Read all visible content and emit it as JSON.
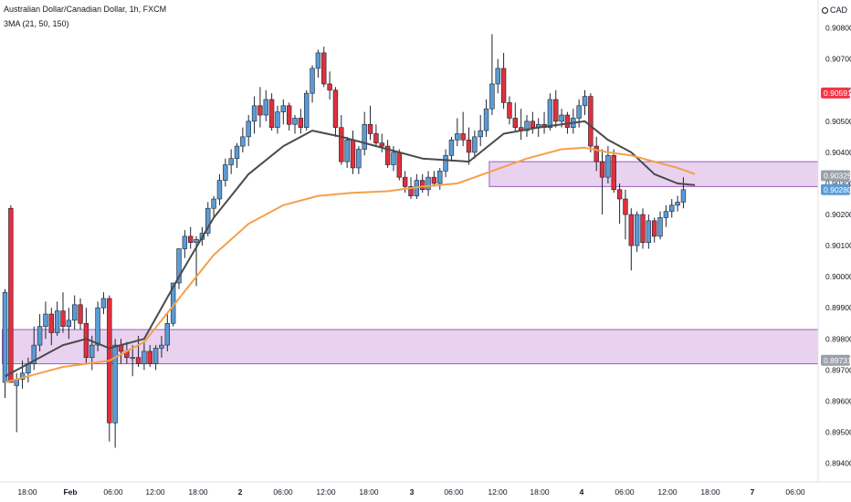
{
  "header": {
    "title": "Australian Dollar/Canadian Dollar, 1h, FXCM",
    "indicator": "3MA (21, 50, 150)",
    "currency": "CAD"
  },
  "colors": {
    "up": "#5b9bd5",
    "down": "#e0303e",
    "wick": "#1f2430",
    "ma_fast": "#4a4a4a",
    "ma_slow": "#f5a04a",
    "zone_fill": "rgba(209,165,226,0.50)",
    "zone_border": "#9b5fb5",
    "stop_fill": "rgba(255,205,210,0.80)",
    "target_fill": "rgba(200,236,225,0.85)",
    "price_red": "#f23645",
    "price_gray": "#9aa0ab",
    "price_blue": "#5b9bd5"
  },
  "chart_data": {
    "type": "candlestick",
    "symbol": "AUDCAD",
    "timeframe": "1h",
    "ylim": [
      0.8934,
      0.9089
    ],
    "y_ticks": [
      "0.90800",
      "0.90700",
      "0.90600",
      "0.90500",
      "0.90400",
      "0.90300",
      "0.90200",
      "0.90100",
      "0.90000",
      "0.89900",
      "0.89800",
      "0.89700",
      "0.89600",
      "0.89500",
      "0.89400"
    ],
    "x_ticks": [
      "18:00",
      "Feb",
      "06:00",
      "12:00",
      "18:00",
      "2",
      "06:00",
      "12:00",
      "18:00",
      "3",
      "06:00",
      "12:00",
      "18:00",
      "4",
      "06:00",
      "12:00",
      "18:00",
      "7",
      "06:00"
    ],
    "candles": [
      [
        0.8966,
        0.8996,
        0.8961,
        0.8995
      ],
      [
        0.9022,
        0.9023,
        0.8966,
        0.8966
      ],
      [
        0.8965,
        0.8969,
        0.895,
        0.8967
      ],
      [
        0.8967,
        0.8973,
        0.8964,
        0.8969
      ],
      [
        0.8969,
        0.8974,
        0.8966,
        0.8972
      ],
      [
        0.8972,
        0.8984,
        0.897,
        0.8978
      ],
      [
        0.8978,
        0.8988,
        0.8976,
        0.8984
      ],
      [
        0.8984,
        0.8992,
        0.898,
        0.8988
      ],
      [
        0.8988,
        0.899,
        0.8978,
        0.8982
      ],
      [
        0.8982,
        0.8992,
        0.8981,
        0.8989
      ],
      [
        0.8989,
        0.8995,
        0.8982,
        0.8984
      ],
      [
        0.8984,
        0.899,
        0.898,
        0.8986
      ],
      [
        0.8986,
        0.8994,
        0.8983,
        0.8991
      ],
      [
        0.8991,
        0.8993,
        0.8983,
        0.8985
      ],
      [
        0.8985,
        0.899,
        0.8972,
        0.8974
      ],
      [
        0.8974,
        0.8981,
        0.897,
        0.8978
      ],
      [
        0.8978,
        0.8992,
        0.8976,
        0.899
      ],
      [
        0.899,
        0.8995,
        0.8988,
        0.8993
      ],
      [
        0.8993,
        0.8994,
        0.8947,
        0.8953
      ],
      [
        0.8953,
        0.898,
        0.8945,
        0.8978
      ],
      [
        0.8978,
        0.898,
        0.8972,
        0.8976
      ],
      [
        0.8976,
        0.8979,
        0.8972,
        0.8974
      ],
      [
        0.8974,
        0.8978,
        0.8968,
        0.8974
      ],
      [
        0.8974,
        0.8981,
        0.8971,
        0.8972
      ],
      [
        0.8972,
        0.8979,
        0.897,
        0.8976
      ],
      [
        0.8976,
        0.8978,
        0.8971,
        0.8972
      ],
      [
        0.8972,
        0.8978,
        0.897,
        0.8977
      ],
      [
        0.8977,
        0.8981,
        0.8974,
        0.8978
      ],
      [
        0.8978,
        0.8988,
        0.8976,
        0.8985
      ],
      [
        0.8985,
        0.8998,
        0.8984,
        0.8998
      ],
      [
        0.8998,
        0.9009,
        0.8996,
        0.9009
      ],
      [
        0.9009,
        0.9015,
        0.9006,
        0.9013
      ],
      [
        0.9013,
        0.9016,
        0.9009,
        0.9011
      ],
      [
        0.9011,
        0.9013,
        0.8997,
        0.9012
      ],
      [
        0.9012,
        0.9016,
        0.901,
        0.9014
      ],
      [
        0.9014,
        0.9024,
        0.9013,
        0.9022
      ],
      [
        0.9022,
        0.9026,
        0.9019,
        0.9025
      ],
      [
        0.9025,
        0.9033,
        0.9023,
        0.9031
      ],
      [
        0.9031,
        0.9038,
        0.9029,
        0.9036
      ],
      [
        0.9036,
        0.9041,
        0.9033,
        0.9038
      ],
      [
        0.9038,
        0.9043,
        0.9035,
        0.9042
      ],
      [
        0.9042,
        0.9048,
        0.904,
        0.9045
      ],
      [
        0.9045,
        0.9052,
        0.9042,
        0.905
      ],
      [
        0.905,
        0.9058,
        0.9046,
        0.9055
      ],
      [
        0.9055,
        0.9061,
        0.9048,
        0.9052
      ],
      [
        0.9052,
        0.906,
        0.905,
        0.9057
      ],
      [
        0.9057,
        0.9059,
        0.9047,
        0.9048
      ],
      [
        0.9048,
        0.9055,
        0.9046,
        0.9053
      ],
      [
        0.9053,
        0.9057,
        0.9049,
        0.9055
      ],
      [
        0.9055,
        0.9056,
        0.9047,
        0.9049
      ],
      [
        0.9049,
        0.9052,
        0.9046,
        0.9051
      ],
      [
        0.9051,
        0.9054,
        0.9046,
        0.9048
      ],
      [
        0.9048,
        0.906,
        0.9047,
        0.9059
      ],
      [
        0.9059,
        0.9068,
        0.9056,
        0.9067
      ],
      [
        0.9067,
        0.9073,
        0.9064,
        0.9072
      ],
      [
        0.9072,
        0.9074,
        0.9061,
        0.9062
      ],
      [
        0.9062,
        0.9066,
        0.9057,
        0.906
      ],
      [
        0.906,
        0.9061,
        0.9045,
        0.9048
      ],
      [
        0.9048,
        0.9052,
        0.9036,
        0.9037
      ],
      [
        0.9037,
        0.9045,
        0.9035,
        0.9044
      ],
      [
        0.9044,
        0.9047,
        0.9033,
        0.9035
      ],
      [
        0.9035,
        0.9042,
        0.9033,
        0.9041
      ],
      [
        0.9041,
        0.9053,
        0.9039,
        0.9049
      ],
      [
        0.9049,
        0.9055,
        0.9044,
        0.9046
      ],
      [
        0.9046,
        0.9049,
        0.9042,
        0.9043
      ],
      [
        0.9043,
        0.9046,
        0.904,
        0.9042
      ],
      [
        0.9042,
        0.9044,
        0.9035,
        0.9036
      ],
      [
        0.9036,
        0.9042,
        0.9034,
        0.904
      ],
      [
        0.904,
        0.9041,
        0.9031,
        0.9032
      ],
      [
        0.9032,
        0.9034,
        0.9027,
        0.9029
      ],
      [
        0.9029,
        0.9032,
        0.9025,
        0.9026
      ],
      [
        0.9026,
        0.9033,
        0.9025,
        0.9031
      ],
      [
        0.9031,
        0.9033,
        0.9027,
        0.9028
      ],
      [
        0.9028,
        0.9034,
        0.9026,
        0.9032
      ],
      [
        0.9032,
        0.9034,
        0.9029,
        0.903
      ],
      [
        0.903,
        0.9035,
        0.9028,
        0.9034
      ],
      [
        0.9034,
        0.9041,
        0.9032,
        0.9039
      ],
      [
        0.9039,
        0.9045,
        0.9037,
        0.9044
      ],
      [
        0.9044,
        0.9051,
        0.9042,
        0.9046
      ],
      [
        0.9046,
        0.9053,
        0.9042,
        0.9044
      ],
      [
        0.9044,
        0.9048,
        0.9036,
        0.904
      ],
      [
        0.904,
        0.9047,
        0.9038,
        0.9045
      ],
      [
        0.9045,
        0.9052,
        0.9042,
        0.9047
      ],
      [
        0.9047,
        0.9057,
        0.9045,
        0.9054
      ],
      [
        0.9054,
        0.9078,
        0.9052,
        0.9062
      ],
      [
        0.9062,
        0.907,
        0.9059,
        0.9067
      ],
      [
        0.9067,
        0.9072,
        0.9054,
        0.9056
      ],
      [
        0.9056,
        0.9058,
        0.9049,
        0.9051
      ],
      [
        0.9051,
        0.9056,
        0.9047,
        0.9048
      ],
      [
        0.9048,
        0.9054,
        0.9044,
        0.9047
      ],
      [
        0.9047,
        0.9052,
        0.9045,
        0.905
      ],
      [
        0.905,
        0.9053,
        0.9046,
        0.9048
      ],
      [
        0.9048,
        0.9051,
        0.9045,
        0.9049
      ],
      [
        0.9049,
        0.9053,
        0.9046,
        0.9048
      ],
      [
        0.9048,
        0.9059,
        0.9047,
        0.9057
      ],
      [
        0.9057,
        0.906,
        0.9048,
        0.905
      ],
      [
        0.905,
        0.9054,
        0.9048,
        0.9052
      ],
      [
        0.9052,
        0.9053,
        0.9046,
        0.9048
      ],
      [
        0.9048,
        0.9054,
        0.9046,
        0.9051
      ],
      [
        0.9051,
        0.9057,
        0.9048,
        0.9055
      ],
      [
        0.9055,
        0.906,
        0.9052,
        0.9058
      ],
      [
        0.9058,
        0.9059,
        0.904,
        0.9042
      ],
      [
        0.9042,
        0.9045,
        0.9034,
        0.9037
      ],
      [
        0.9037,
        0.9041,
        0.902,
        0.9032
      ],
      [
        0.9032,
        0.9042,
        0.903,
        0.9039
      ],
      [
        0.9039,
        0.9041,
        0.9027,
        0.9028
      ],
      [
        0.9028,
        0.903,
        0.9017,
        0.9025
      ],
      [
        0.9025,
        0.9028,
        0.9012,
        0.902
      ],
      [
        0.902,
        0.9022,
        0.9002,
        0.901
      ],
      [
        0.901,
        0.9021,
        0.9008,
        0.902
      ],
      [
        0.902,
        0.9022,
        0.9009,
        0.9011
      ],
      [
        0.9011,
        0.902,
        0.9009,
        0.9018
      ],
      [
        0.9018,
        0.9019,
        0.9011,
        0.9013
      ],
      [
        0.9013,
        0.9021,
        0.9012,
        0.9019
      ],
      [
        0.9019,
        0.9023,
        0.9016,
        0.9021
      ],
      [
        0.9021,
        0.9025,
        0.9019,
        0.9023
      ],
      [
        0.9023,
        0.9026,
        0.9021,
        0.9024
      ],
      [
        0.9024,
        0.9032,
        0.9022,
        0.9028
      ]
    ],
    "series": [
      {
        "name": "",
        "color": "#4a4a4a",
        "x": [
          0,
          6,
          10,
          14,
          18,
          24,
          30,
          36,
          42,
          48,
          53,
          58,
          66,
          72,
          80,
          86,
          92,
          96,
          100,
          104,
          108,
          112,
          116,
          119
        ],
        "values": [
          0.8968,
          0.8974,
          0.8978,
          0.898,
          0.8977,
          0.898,
          0.9,
          0.9019,
          0.9033,
          0.9042,
          0.9047,
          0.9045,
          0.9041,
          0.9038,
          0.9037,
          0.9046,
          0.9048,
          0.9049,
          0.905,
          0.9044,
          0.904,
          0.9033,
          0.903,
          0.90295
        ]
      },
      {
        "name": "",
        "color": "#f5a04a",
        "x": [
          0,
          6,
          10,
          14,
          18,
          24,
          30,
          36,
          42,
          48,
          54,
          60,
          66,
          72,
          78,
          84,
          90,
          96,
          100,
          104,
          108,
          112,
          116,
          119
        ],
        "values": [
          0.8966,
          0.8969,
          0.8971,
          0.8972,
          0.8973,
          0.8979,
          0.8993,
          0.9007,
          0.9017,
          0.9023,
          0.9026,
          0.9027,
          0.90275,
          0.9029,
          0.903,
          0.9034,
          0.9038,
          0.9041,
          0.90415,
          0.904,
          0.9039,
          0.9037,
          0.9035,
          0.9033
        ]
      }
    ],
    "zones": [
      {
        "x_start": 84,
        "x_end": 168,
        "y_low": 0.9029,
        "y_high": 0.9037
      },
      {
        "x_start": 0,
        "x_end": 168,
        "y_low": 0.8972,
        "y_high": 0.8983
      }
    ],
    "position": {
      "x_start": 168,
      "x_end": 182,
      "entry": 0.90325,
      "stop": 0.90591,
      "target": 0.89731
    },
    "price_labels": [
      {
        "value": 0.90591,
        "text": "0.90591",
        "color": "#f23645"
      },
      {
        "value": 0.90325,
        "text": "0.90325",
        "color": "#9aa0ab"
      },
      {
        "value": 0.9028,
        "text": "0.90280",
        "color": "#5b9bd5"
      },
      {
        "value": 0.89731,
        "text": "0.89731",
        "color": "#9aa0ab"
      }
    ]
  }
}
